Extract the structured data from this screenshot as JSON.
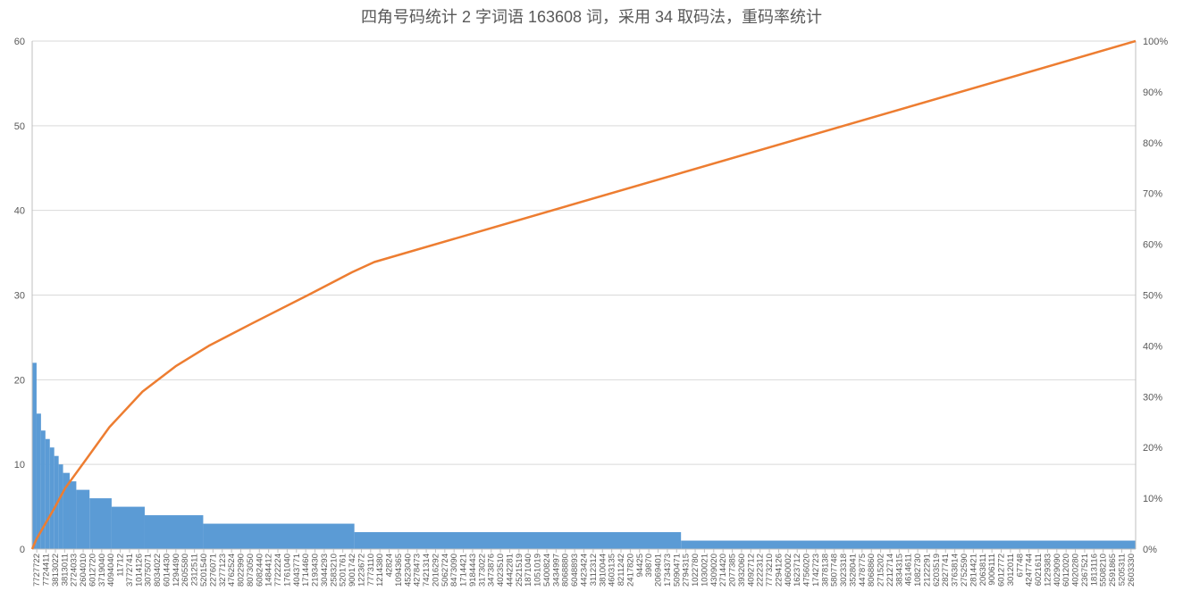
{
  "chart_data": {
    "type": "bar",
    "title": "四角号码统计 2 字词语 163608 词，采用 34 取码法，重码率统计",
    "xlabel": "",
    "ylabel": "",
    "ylim": [
      0,
      60
    ],
    "y2lim": [
      0,
      1
    ],
    "y_ticks": [
      "0",
      "10",
      "20",
      "30",
      "40",
      "50",
      "60"
    ],
    "y2_ticks": [
      "0%",
      "10%",
      "20%",
      "30%",
      "40%",
      "50%",
      "60%",
      "70%",
      "80%",
      "90%",
      "100%"
    ],
    "grid": true,
    "colors": {
      "bars": "#5b9bd5",
      "line": "#ed7d31"
    },
    "x_tick_labels": [
      "7727722",
      "7724411",
      "3813022",
      "3813011",
      "2724033",
      "2604010",
      "6012720",
      "3719040",
      "4094040",
      "11712",
      "3772741",
      "1014126",
      "3075071",
      "8034022",
      "6014430",
      "1294490",
      "2605580",
      "2312511",
      "5201540",
      "2276071",
      "3277123",
      "4762524",
      "8022990",
      "8073050",
      "6082440",
      "1484412",
      "7722224",
      "1761040",
      "4043771",
      "1714460",
      "2193430",
      "3044293",
      "2583210",
      "5201761",
      "9001742",
      "1223672",
      "7773110",
      "1214380",
      "42824",
      "1094365",
      "4523040",
      "4278473",
      "7421314",
      "2016292",
      "5062724",
      "8473090",
      "1714421",
      "9184443",
      "3173022",
      "3473876",
      "4023510",
      "4442281",
      "2521519",
      "1871040",
      "1051019",
      "5400824",
      "3434997",
      "8068880",
      "6048893",
      "4423424",
      "3112312",
      "3810044",
      "4603135",
      "8211242",
      "2417820",
      "94425",
      "39870",
      "2069401",
      "1734373",
      "5090471",
      "2794315",
      "1022780",
      "1030021",
      "4309020",
      "2714420",
      "2077385",
      "3932060",
      "4092712",
      "2222312",
      "7773210",
      "2294126",
      "4060002",
      "1623712",
      "4756020",
      "1742723",
      "3878138",
      "5807748",
      "3023318",
      "3528041",
      "4478775",
      "8068860",
      "2715202",
      "2212714",
      "3834315",
      "4614611",
      "1082730",
      "2122291",
      "6203519",
      "2827741",
      "3763814",
      "2752590",
      "2814421",
      "2063811",
      "9006111",
      "6012772",
      "3012011",
      "67748",
      "4247744",
      "6021611",
      "1229383",
      "4029090",
      "6012020",
      "4020280",
      "2367521",
      "1813116",
      "5508210",
      "2591865",
      "5205311",
      "2603330"
    ],
    "series": [
      {
        "type": "bar",
        "axis": "left",
        "points": [
          [
            0,
            22
          ],
          [
            0.004,
            16
          ],
          [
            0.008,
            14
          ],
          [
            0.012,
            13
          ],
          [
            0.016,
            12
          ],
          [
            0.02,
            11
          ],
          [
            0.024,
            10
          ],
          [
            0.028,
            9
          ],
          [
            0.034,
            8
          ],
          [
            0.04,
            7
          ],
          [
            0.052,
            6
          ],
          [
            0.072,
            5
          ],
          [
            0.102,
            4
          ],
          [
            0.155,
            3
          ],
          [
            0.292,
            2
          ],
          [
            0.588,
            1
          ],
          [
            1.0,
            1
          ]
        ]
      },
      {
        "type": "line",
        "axis": "right",
        "points": [
          [
            0,
            0
          ],
          [
            0.004,
            0.02
          ],
          [
            0.02,
            0.08
          ],
          [
            0.03,
            0.12
          ],
          [
            0.05,
            0.18
          ],
          [
            0.07,
            0.24
          ],
          [
            0.1,
            0.31
          ],
          [
            0.13,
            0.36
          ],
          [
            0.16,
            0.4
          ],
          [
            0.2,
            0.445
          ],
          [
            0.25,
            0.5
          ],
          [
            0.29,
            0.545
          ],
          [
            0.31,
            0.565
          ],
          [
            1.0,
            1.0
          ]
        ]
      }
    ]
  }
}
